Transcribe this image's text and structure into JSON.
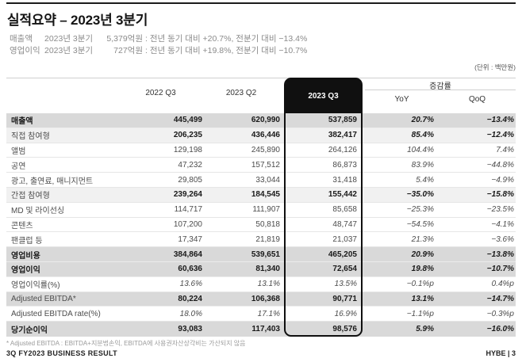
{
  "header": {
    "title": "실적요약 – 2023년 3분기",
    "summary": [
      {
        "label": "매출액",
        "period": "2023년 3분기",
        "amount": "5,379억원",
        "detail": ": 전년 동기 대비 +20.7%, 전분기 대비 −13.4%"
      },
      {
        "label": "영업이익",
        "period": "2023년 3분기",
        "amount": "727억원",
        "detail": ": 전년 동기 대비 +19.8%, 전분기 대비 −10.7%"
      }
    ],
    "unit_note": "(단위 : 백만원)"
  },
  "table": {
    "period_columns": [
      "2022 Q3",
      "2023 Q2",
      "2023 Q3"
    ],
    "highlight_column": "2023 Q3",
    "change_group": {
      "label": "증감률",
      "columns": [
        "YoY",
        "QoQ"
      ]
    },
    "rows": [
      {
        "label": "매출액",
        "values": [
          "445,499",
          "620,990",
          "537,859"
        ],
        "yoy": "20.7%",
        "qoq": "−13.4%",
        "bg": "gray",
        "bold": true,
        "label_bold": true
      },
      {
        "label": "직접 참여형",
        "values": [
          "206,235",
          "436,446",
          "382,417"
        ],
        "yoy": "85.4%",
        "qoq": "−12.4%",
        "bg": "light",
        "bold": true
      },
      {
        "label": "앨범",
        "values": [
          "129,198",
          "245,890",
          "264,126"
        ],
        "yoy": "104.4%",
        "qoq": "7.4%"
      },
      {
        "label": "공연",
        "values": [
          "47,232",
          "157,512",
          "86,873"
        ],
        "yoy": "83.9%",
        "qoq": "−44.8%"
      },
      {
        "label": "광고, 출연료, 매니지먼트",
        "values": [
          "29,805",
          "33,044",
          "31,418"
        ],
        "yoy": "5.4%",
        "qoq": "−4.9%"
      },
      {
        "label": "간접 참여형",
        "values": [
          "239,264",
          "184,545",
          "155,442"
        ],
        "yoy": "−35.0%",
        "qoq": "−15.8%",
        "bg": "light",
        "bold": true
      },
      {
        "label": "MD 및 라이선싱",
        "values": [
          "114,717",
          "111,907",
          "85,658"
        ],
        "yoy": "−25.3%",
        "qoq": "−23.5%"
      },
      {
        "label": "콘텐츠",
        "values": [
          "107,200",
          "50,818",
          "48,747"
        ],
        "yoy": "−54.5%",
        "qoq": "−4.1%"
      },
      {
        "label": "팬클럽 등",
        "values": [
          "17,347",
          "21,819",
          "21,037"
        ],
        "yoy": "21.3%",
        "qoq": "−3.6%"
      },
      {
        "label": "영업비용",
        "values": [
          "384,864",
          "539,651",
          "465,205"
        ],
        "yoy": "20.9%",
        "qoq": "−13.8%",
        "bg": "gray",
        "bold": true,
        "label_bold": true
      },
      {
        "label": "영업이익",
        "values": [
          "60,636",
          "81,340",
          "72,654"
        ],
        "yoy": "19.8%",
        "qoq": "−10.7%",
        "bg": "gray",
        "bold": true,
        "label_bold": true
      },
      {
        "label": "영업이익률(%)",
        "values": [
          "13.6%",
          "13.1%",
          "13.5%"
        ],
        "yoy": "−0.1%p",
        "qoq": "0.4%p",
        "italic": true
      },
      {
        "label": "Adjusted EBITDA*",
        "values": [
          "80,224",
          "106,368",
          "90,771"
        ],
        "yoy": "13.1%",
        "qoq": "−14.7%",
        "bg": "gray",
        "bold": true
      },
      {
        "label": "Adjusted EBITDA rate(%)",
        "values": [
          "18.0%",
          "17.1%",
          "16.9%"
        ],
        "yoy": "−1.1%p",
        "qoq": "−0.3%p",
        "italic": true
      },
      {
        "label": "당기순이익",
        "values": [
          "93,083",
          "117,403",
          "98,576"
        ],
        "yoy": "5.9%",
        "qoq": "−16.0%",
        "bg": "gray",
        "bold": true,
        "label_bold": true
      }
    ]
  },
  "footer": {
    "footnote": "* Adjusted EBITDA : EBITDA+지분법손익, EBITDA에 사용권자산상각비는 가산되지 않음",
    "left": "3Q FY2023 BUSINESS RESULT",
    "right": "HYBE | 3"
  },
  "colors": {
    "highlight_box": "#101010",
    "row_gray": "#d9d9d9",
    "row_light": "#f1f1f1",
    "rule": "#cfcfcf"
  }
}
